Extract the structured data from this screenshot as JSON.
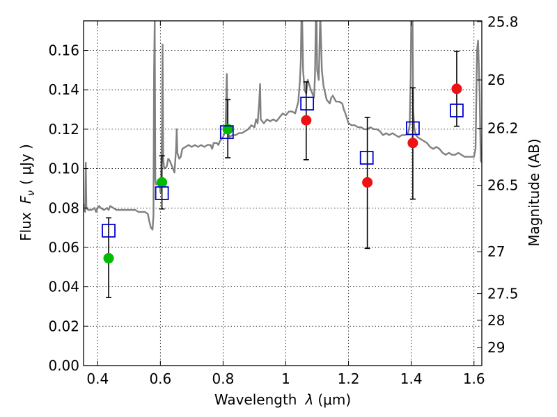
{
  "chart_data": {
    "type": "scatter",
    "title": "",
    "xlabel": "Wavelength",
    "xlabel_symbol": "λ",
    "xlabel_unit": "(μm)",
    "ylabel": "Flux",
    "ylabel_symbol": "F",
    "ylabel_subscript": "ν",
    "ylabel_unit": "( μJy )",
    "y2label": "Magnitude (AB)",
    "xlim": [
      0.355,
      1.625
    ],
    "ylim": [
      0.0,
      0.175
    ],
    "grid": true,
    "x_ticks": [
      0.4,
      0.6,
      0.8,
      1.0,
      1.2,
      1.4,
      1.6
    ],
    "x_tick_labels": [
      "0.4",
      "0.6",
      "0.8",
      "1",
      "1.2",
      "1.4",
      "1.6"
    ],
    "y_ticks": [
      0.0,
      0.02,
      0.04,
      0.06,
      0.08,
      0.1,
      0.12,
      0.14,
      0.16
    ],
    "y_tick_labels": [
      "0.00",
      "0.02",
      "0.04",
      "0.06",
      "0.08",
      "0.10",
      "0.12",
      "0.14",
      "0.16"
    ],
    "y2_ticks": [
      {
        "label": "25.8",
        "flux": 0.1745
      },
      {
        "label": "26",
        "flux": 0.145
      },
      {
        "label": "26.2",
        "flux": 0.1205
      },
      {
        "label": "26.5",
        "flux": 0.0915
      },
      {
        "label": "27",
        "flux": 0.0578
      },
      {
        "label": "27.5",
        "flux": 0.0365
      },
      {
        "label": "28",
        "flux": 0.023
      },
      {
        "label": "29",
        "flux": 0.0092
      }
    ],
    "colors": {
      "spectrum": "#808080",
      "model": "#0000cc",
      "green": "#00bb00",
      "red": "#ee1111",
      "errorbar": "#000000"
    },
    "series": [
      {
        "name": "model spectrum",
        "kind": "line",
        "points": [
          [
            0.355,
            0.082
          ],
          [
            0.358,
            0.079
          ],
          [
            0.36,
            0.078
          ],
          [
            0.362,
            0.103
          ],
          [
            0.364,
            0.08
          ],
          [
            0.37,
            0.079
          ],
          [
            0.38,
            0.079
          ],
          [
            0.39,
            0.08
          ],
          [
            0.395,
            0.078
          ],
          [
            0.4,
            0.08
          ],
          [
            0.405,
            0.081
          ],
          [
            0.41,
            0.08
          ],
          [
            0.42,
            0.079
          ],
          [
            0.43,
            0.08
          ],
          [
            0.435,
            0.079
          ],
          [
            0.44,
            0.081
          ],
          [
            0.45,
            0.08
          ],
          [
            0.46,
            0.079
          ],
          [
            0.47,
            0.079
          ],
          [
            0.48,
            0.079
          ],
          [
            0.49,
            0.079
          ],
          [
            0.5,
            0.079
          ],
          [
            0.51,
            0.079
          ],
          [
            0.52,
            0.079
          ],
          [
            0.53,
            0.078
          ],
          [
            0.54,
            0.078
          ],
          [
            0.55,
            0.078
          ],
          [
            0.56,
            0.077
          ],
          [
            0.565,
            0.073
          ],
          [
            0.57,
            0.07
          ],
          [
            0.575,
            0.069
          ],
          [
            0.578,
            0.076
          ],
          [
            0.58,
            0.15
          ],
          [
            0.582,
            0.175
          ],
          [
            0.584,
            0.095
          ],
          [
            0.586,
            0.092
          ],
          [
            0.59,
            0.092
          ],
          [
            0.595,
            0.093
          ],
          [
            0.598,
            0.094
          ],
          [
            0.6,
            0.088
          ],
          [
            0.602,
            0.09
          ],
          [
            0.605,
            0.12
          ],
          [
            0.607,
            0.163
          ],
          [
            0.609,
            0.105
          ],
          [
            0.612,
            0.1
          ],
          [
            0.62,
            0.101
          ],
          [
            0.625,
            0.105
          ],
          [
            0.63,
            0.104
          ],
          [
            0.635,
            0.102
          ],
          [
            0.64,
            0.1
          ],
          [
            0.645,
            0.098
          ],
          [
            0.65,
            0.11
          ],
          [
            0.652,
            0.12
          ],
          [
            0.654,
            0.108
          ],
          [
            0.66,
            0.105
          ],
          [
            0.665,
            0.106
          ],
          [
            0.67,
            0.11
          ],
          [
            0.68,
            0.111
          ],
          [
            0.69,
            0.112
          ],
          [
            0.7,
            0.111
          ],
          [
            0.71,
            0.112
          ],
          [
            0.72,
            0.111
          ],
          [
            0.73,
            0.112
          ],
          [
            0.74,
            0.111
          ],
          [
            0.75,
            0.112
          ],
          [
            0.76,
            0.112
          ],
          [
            0.765,
            0.11
          ],
          [
            0.77,
            0.113
          ],
          [
            0.775,
            0.113
          ],
          [
            0.78,
            0.113
          ],
          [
            0.785,
            0.112
          ],
          [
            0.79,
            0.114
          ],
          [
            0.795,
            0.115
          ],
          [
            0.8,
            0.116
          ],
          [
            0.805,
            0.118
          ],
          [
            0.808,
            0.122
          ],
          [
            0.81,
            0.135
          ],
          [
            0.812,
            0.148
          ],
          [
            0.814,
            0.12
          ],
          [
            0.82,
            0.116
          ],
          [
            0.83,
            0.117
          ],
          [
            0.84,
            0.117
          ],
          [
            0.85,
            0.118
          ],
          [
            0.86,
            0.118
          ],
          [
            0.87,
            0.119
          ],
          [
            0.88,
            0.12
          ],
          [
            0.89,
            0.122
          ],
          [
            0.9,
            0.121
          ],
          [
            0.905,
            0.125
          ],
          [
            0.91,
            0.123
          ],
          [
            0.915,
            0.133
          ],
          [
            0.918,
            0.143
          ],
          [
            0.92,
            0.125
          ],
          [
            0.93,
            0.123
          ],
          [
            0.94,
            0.125
          ],
          [
            0.95,
            0.124
          ],
          [
            0.96,
            0.125
          ],
          [
            0.97,
            0.124
          ],
          [
            0.98,
            0.126
          ],
          [
            0.99,
            0.128
          ],
          [
            1.0,
            0.127
          ],
          [
            1.01,
            0.129
          ],
          [
            1.02,
            0.129
          ],
          [
            1.03,
            0.128
          ],
          [
            1.04,
            0.134
          ],
          [
            1.045,
            0.145
          ],
          [
            1.048,
            0.155
          ],
          [
            1.05,
            0.178
          ],
          [
            1.052,
            0.178
          ],
          [
            1.055,
            0.15
          ],
          [
            1.06,
            0.14
          ],
          [
            1.065,
            0.138
          ],
          [
            1.07,
            0.145
          ],
          [
            1.08,
            0.14
          ],
          [
            1.09,
            0.136
          ],
          [
            1.093,
            0.147
          ],
          [
            1.096,
            0.178
          ],
          [
            1.098,
            0.178
          ],
          [
            1.1,
            0.15
          ],
          [
            1.105,
            0.145
          ],
          [
            1.11,
            0.178
          ],
          [
            1.115,
            0.15
          ],
          [
            1.12,
            0.142
          ],
          [
            1.13,
            0.135
          ],
          [
            1.14,
            0.133
          ],
          [
            1.145,
            0.136
          ],
          [
            1.15,
            0.137
          ],
          [
            1.16,
            0.134
          ],
          [
            1.17,
            0.134
          ],
          [
            1.18,
            0.133
          ],
          [
            1.185,
            0.13
          ],
          [
            1.19,
            0.128
          ],
          [
            1.2,
            0.123
          ],
          [
            1.21,
            0.122
          ],
          [
            1.22,
            0.122
          ],
          [
            1.23,
            0.121
          ],
          [
            1.24,
            0.121
          ],
          [
            1.25,
            0.12
          ],
          [
            1.26,
            0.12
          ],
          [
            1.27,
            0.121
          ],
          [
            1.28,
            0.12
          ],
          [
            1.29,
            0.12
          ],
          [
            1.3,
            0.119
          ],
          [
            1.31,
            0.117
          ],
          [
            1.32,
            0.118
          ],
          [
            1.33,
            0.117
          ],
          [
            1.34,
            0.118
          ],
          [
            1.35,
            0.117
          ],
          [
            1.36,
            0.116
          ],
          [
            1.37,
            0.117
          ],
          [
            1.38,
            0.117
          ],
          [
            1.39,
            0.118
          ],
          [
            1.395,
            0.122
          ],
          [
            1.398,
            0.145
          ],
          [
            1.4,
            0.178
          ],
          [
            1.404,
            0.178
          ],
          [
            1.406,
            0.13
          ],
          [
            1.41,
            0.12
          ],
          [
            1.415,
            0.117
          ],
          [
            1.42,
            0.116
          ],
          [
            1.43,
            0.115
          ],
          [
            1.44,
            0.114
          ],
          [
            1.45,
            0.113
          ],
          [
            1.46,
            0.111
          ],
          [
            1.47,
            0.11
          ],
          [
            1.48,
            0.111
          ],
          [
            1.49,
            0.11
          ],
          [
            1.5,
            0.108
          ],
          [
            1.51,
            0.107
          ],
          [
            1.52,
            0.108
          ],
          [
            1.53,
            0.107
          ],
          [
            1.54,
            0.107
          ],
          [
            1.55,
            0.108
          ],
          [
            1.56,
            0.107
          ],
          [
            1.57,
            0.106
          ],
          [
            1.58,
            0.106
          ],
          [
            1.59,
            0.106
          ],
          [
            1.6,
            0.106
          ],
          [
            1.605,
            0.11
          ],
          [
            1.61,
            0.16
          ],
          [
            1.613,
            0.165
          ],
          [
            1.615,
            0.155
          ],
          [
            1.618,
            0.14
          ],
          [
            1.62,
            0.12
          ],
          [
            1.622,
            0.104
          ],
          [
            1.625,
            0.103
          ]
        ]
      },
      {
        "name": "model photometry",
        "kind": "open-square",
        "x": [
          0.435,
          0.605,
          0.812,
          1.068,
          1.258,
          1.405,
          1.545
        ],
        "y": [
          0.0685,
          0.0875,
          0.1185,
          0.133,
          0.1055,
          0.1205,
          0.1295
        ]
      },
      {
        "name": "green photometry",
        "kind": "filled-circle",
        "x": [
          0.435,
          0.605,
          0.815
        ],
        "y": [
          0.0545,
          0.093,
          0.12
        ]
      },
      {
        "name": "red photometry",
        "kind": "filled-circle",
        "x": [
          1.065,
          1.26,
          1.405,
          1.545
        ],
        "y": [
          0.1245,
          0.093,
          0.113,
          0.1405
        ]
      },
      {
        "name": "error bars",
        "kind": "errorbar",
        "x": [
          0.435,
          0.605,
          0.815,
          1.065,
          1.26,
          1.405,
          1.545
        ],
        "low": [
          0.0345,
          0.0795,
          0.1055,
          0.1045,
          0.0595,
          0.0845,
          0.1215
        ],
        "high": [
          0.075,
          0.1065,
          0.135,
          0.144,
          0.126,
          0.141,
          0.1595
        ]
      }
    ]
  }
}
